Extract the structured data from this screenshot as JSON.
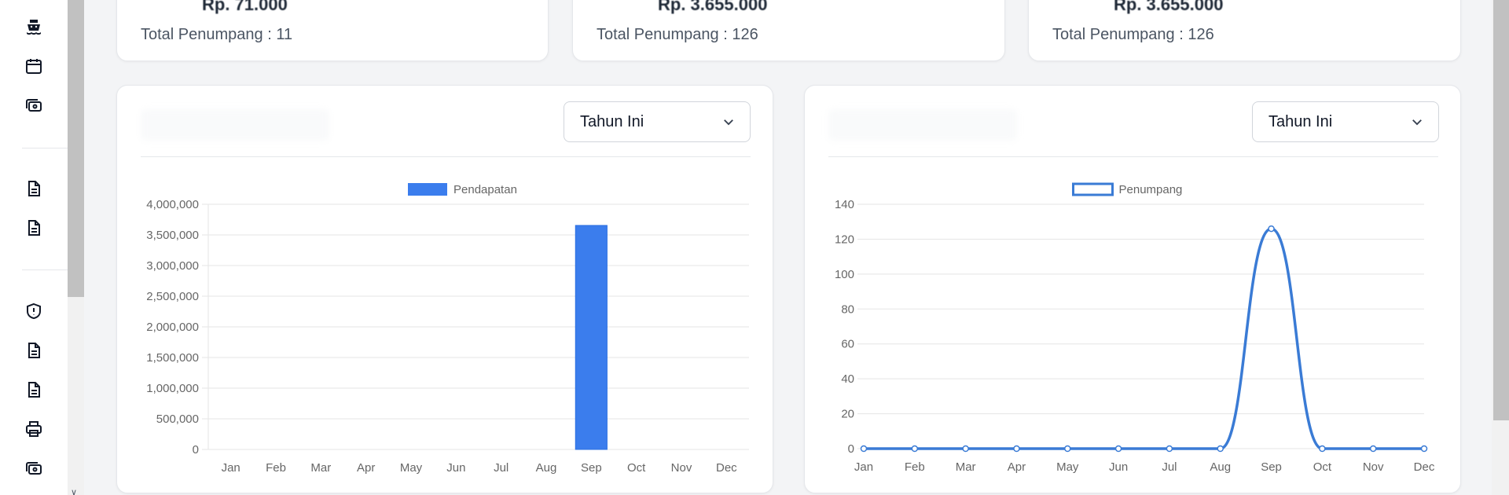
{
  "stats": [
    {
      "value": "Rp. 71.000",
      "label": "Total Penumpang : 11"
    },
    {
      "value": "Rp. 3.655.000",
      "label": "Total Penumpang : 126"
    },
    {
      "value": "Rp. 3.655.000",
      "label": "Total Penumpang : 126"
    }
  ],
  "sidebar": {
    "icons": [
      "ship-icon",
      "calendar-icon",
      "cash-icon",
      "document-icon",
      "document-icon",
      "shield-alert-icon",
      "document-icon",
      "document-icon",
      "printer-icon",
      "cash-icon"
    ]
  },
  "charts": {
    "left": {
      "filter_value": "Tahun Ini"
    },
    "right": {
      "filter_value": "Tahun Ini"
    }
  },
  "chart_data": [
    {
      "type": "bar",
      "categories": [
        "Jan",
        "Feb",
        "Mar",
        "Apr",
        "May",
        "Jun",
        "Jul",
        "Aug",
        "Sep",
        "Oct",
        "Nov",
        "Dec"
      ],
      "series": [
        {
          "name": "Pendapatan",
          "values": [
            0,
            0,
            0,
            0,
            0,
            0,
            0,
            0,
            3655000,
            0,
            0,
            0
          ]
        }
      ],
      "ylim": [
        0,
        4000000
      ],
      "yticks": [
        "4,000,000",
        "3,500,000",
        "3,000,000",
        "2,500,000",
        "2,000,000",
        "1,500,000",
        "1,000,000",
        "500,000",
        "0"
      ],
      "color": "#3b7ded",
      "legend": "top-center",
      "grid": true
    },
    {
      "type": "line",
      "categories": [
        "Jan",
        "Feb",
        "Mar",
        "Apr",
        "May",
        "Jun",
        "Jul",
        "Aug",
        "Sep",
        "Oct",
        "Nov",
        "Dec"
      ],
      "series": [
        {
          "name": "Penumpang",
          "values": [
            0,
            0,
            0,
            0,
            0,
            0,
            0,
            0,
            126,
            0,
            0,
            0
          ]
        }
      ],
      "ylim": [
        0,
        140
      ],
      "yticks": [
        "140",
        "120",
        "100",
        "80",
        "60",
        "40",
        "20",
        "0"
      ],
      "color": "#3a7bd5",
      "legend": "top-center",
      "grid": true
    }
  ]
}
